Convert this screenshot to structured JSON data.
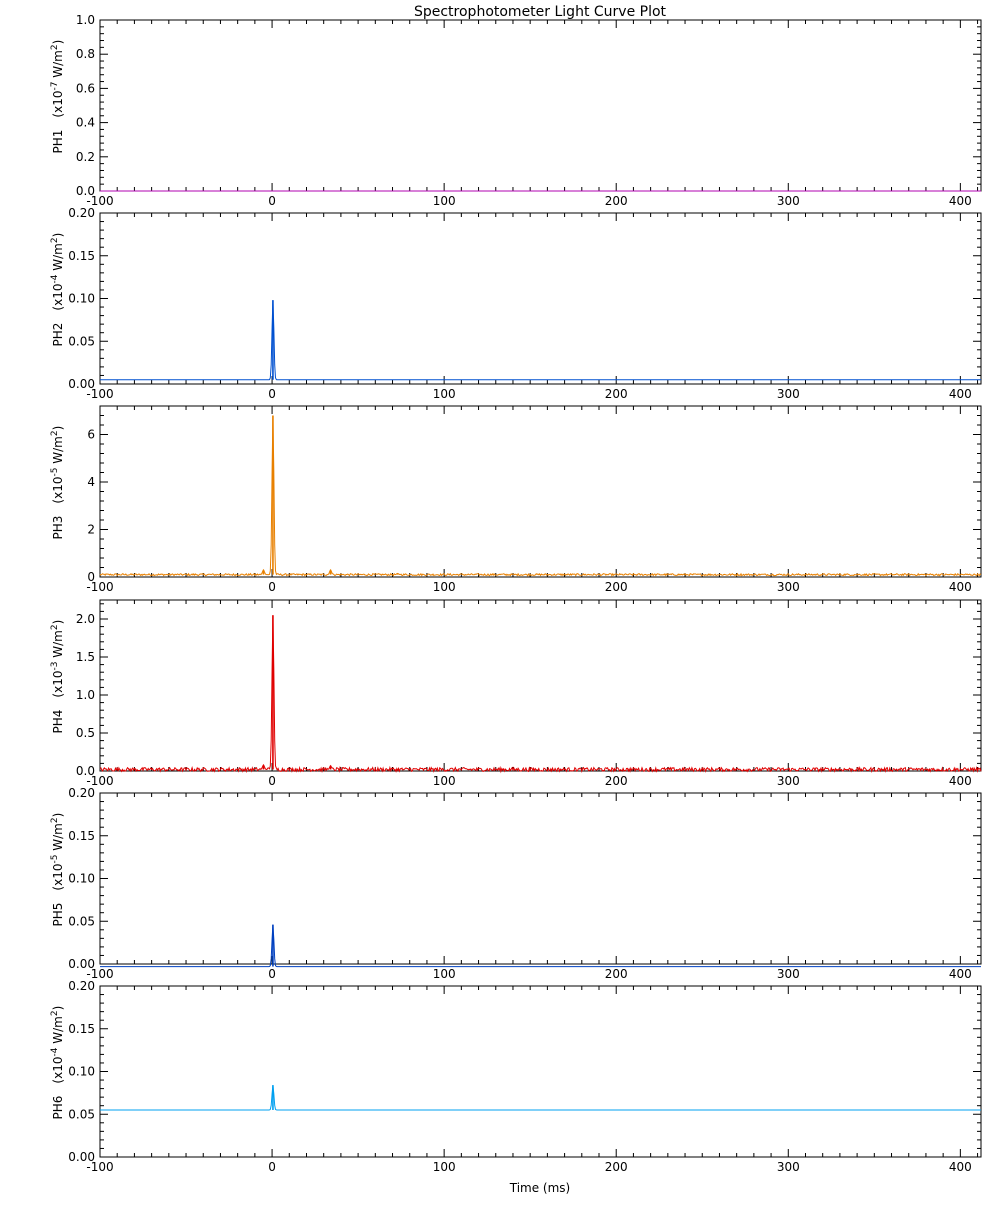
{
  "chart_data": {
    "type": "line",
    "title": "Spectrophotometer Light Curve Plot",
    "xlabel": "Time (ms)",
    "xlim": [
      -100,
      412
    ],
    "x_ticks": [
      -100,
      0,
      100,
      200,
      300,
      400
    ],
    "x_tick_labels": [
      "-100",
      "0",
      "100",
      "200",
      "300",
      "400"
    ],
    "grid": false,
    "panels": [
      {
        "name": "PH1",
        "ylabel": "PH1",
        "unit_prefix": "(x10",
        "unit_exponent": "-7",
        "unit_suffix": " W/m",
        "unit_square": "2",
        "unit_close": ")",
        "ylim": [
          0,
          1.0
        ],
        "y_ticks": [
          0.0,
          0.2,
          0.4,
          0.6,
          0.8,
          1.0
        ],
        "y_tick_labels": [
          "0.0",
          "0.2",
          "0.4",
          "0.6",
          "0.8",
          "1.0"
        ],
        "color": "#b000b0",
        "baseline": 0.0,
        "noise": 0.0,
        "peaks": []
      },
      {
        "name": "PH2",
        "ylabel": "PH2",
        "unit_prefix": "(x10",
        "unit_exponent": "-4",
        "unit_suffix": " W/m",
        "unit_square": "2",
        "unit_close": ")",
        "ylim": [
          0,
          0.2
        ],
        "y_ticks": [
          0.0,
          0.05,
          0.1,
          0.15,
          0.2
        ],
        "y_tick_labels": [
          "0.00",
          "0.05",
          "0.10",
          "0.15",
          "0.20"
        ],
        "color": "#0050d0",
        "baseline": 0.005,
        "noise": 0.0,
        "peaks": [
          [
            0.5,
            0.098
          ]
        ]
      },
      {
        "name": "PH3",
        "ylabel": "PH3",
        "unit_prefix": "(x10",
        "unit_exponent": "-5",
        "unit_suffix": " W/m",
        "unit_square": "2",
        "unit_close": ")",
        "ylim": [
          0,
          7.2
        ],
        "y_ticks": [
          0,
          2,
          4,
          6
        ],
        "y_tick_labels": [
          "0",
          "2",
          "4",
          "6"
        ],
        "color": "#e88000",
        "baseline": 0.1,
        "noise": 0.04,
        "peaks": [
          [
            -5,
            0.3
          ],
          [
            0.5,
            6.8
          ],
          [
            34,
            0.3
          ],
          [
            73,
            0.15
          ]
        ]
      },
      {
        "name": "PH4",
        "ylabel": "PH4",
        "unit_prefix": "(x10",
        "unit_exponent": "-3",
        "unit_suffix": " W/m",
        "unit_square": "2",
        "unit_close": ")",
        "ylim": [
          0,
          2.25
        ],
        "y_ticks": [
          0.0,
          0.5,
          1.0,
          1.5,
          2.0
        ],
        "y_tick_labels": [
          "0.0",
          "0.5",
          "1.0",
          "1.5",
          "2.0"
        ],
        "color": "#e00000",
        "baseline": 0.02,
        "noise": 0.025,
        "peaks": [
          [
            -5,
            0.08
          ],
          [
            0.5,
            2.05
          ],
          [
            34,
            0.07
          ]
        ]
      },
      {
        "name": "PH5",
        "ylabel": "PH5",
        "unit_prefix": "(x10",
        "unit_exponent": "-5",
        "unit_suffix": " W/m",
        "unit_square": "2",
        "unit_close": ")",
        "ylim": [
          0,
          0.2
        ],
        "y_ticks": [
          0.0,
          0.05,
          0.1,
          0.15,
          0.2
        ],
        "y_tick_labels": [
          "0.00",
          "0.05",
          "0.10",
          "0.15",
          "0.20"
        ],
        "color": "#0040c0",
        "baseline": -0.003,
        "noise": 0.0,
        "peaks": [
          [
            0.5,
            0.046
          ]
        ]
      },
      {
        "name": "PH6",
        "ylabel": "PH6",
        "unit_prefix": "(x10",
        "unit_exponent": "-4",
        "unit_suffix": " W/m",
        "unit_square": "2",
        "unit_close": ")",
        "ylim": [
          0,
          0.2
        ],
        "y_ticks": [
          0.0,
          0.05,
          0.1,
          0.15,
          0.2
        ],
        "y_tick_labels": [
          "0.00",
          "0.05",
          "0.10",
          "0.15",
          "0.20"
        ],
        "color": "#00a0f0",
        "baseline": 0.055,
        "noise": 0.0,
        "peaks": [
          [
            0.5,
            0.084
          ]
        ]
      }
    ]
  }
}
